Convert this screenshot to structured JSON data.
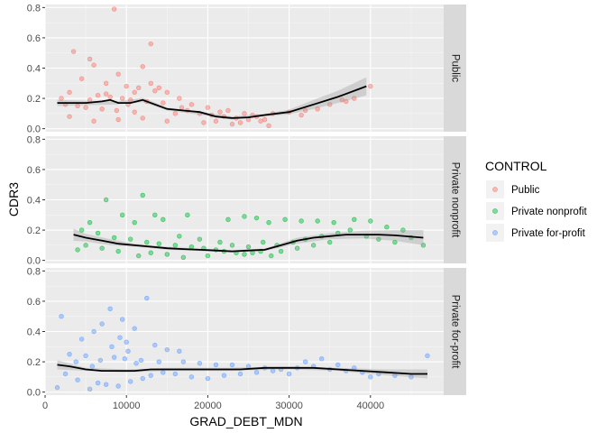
{
  "chart_data": {
    "type": "scatter",
    "xlabel": "GRAD_DEBT_MDN",
    "ylabel": "CDR3",
    "xlim": [
      0,
      49000
    ],
    "ylim": [
      -0.02,
      0.82
    ],
    "x_ticks": [
      0,
      10000,
      20000,
      30000,
      40000
    ],
    "x_tick_labels": [
      "0",
      "10000",
      "20000",
      "30000",
      "40000"
    ],
    "y_ticks": [
      0.0,
      0.2,
      0.4,
      0.6,
      0.8
    ],
    "y_tick_labels": [
      "0.0",
      "0.2",
      "0.4",
      "0.6",
      "0.8"
    ],
    "grid": true,
    "legend": {
      "title": "CONTROL",
      "placement": "right",
      "entries": [
        "Public",
        "Private nonprofit",
        "Private for-profit"
      ]
    },
    "panels": [
      {
        "name": "Public",
        "color": "#F8766D",
        "smooth": [
          [
            1500,
            0.17
          ],
          [
            3000,
            0.17
          ],
          [
            5000,
            0.17
          ],
          [
            7000,
            0.18
          ],
          [
            8000,
            0.19
          ],
          [
            9000,
            0.17
          ],
          [
            10500,
            0.17
          ],
          [
            12000,
            0.19
          ],
          [
            13500,
            0.16
          ],
          [
            15000,
            0.13
          ],
          [
            17000,
            0.12
          ],
          [
            19000,
            0.11
          ],
          [
            21000,
            0.08
          ],
          [
            23000,
            0.07
          ],
          [
            25000,
            0.075
          ],
          [
            27000,
            0.09
          ],
          [
            30000,
            0.11
          ],
          [
            33000,
            0.16
          ],
          [
            36000,
            0.21
          ],
          [
            39500,
            0.28
          ]
        ],
        "band": [
          [
            1500,
            0.15,
            0.19
          ],
          [
            5000,
            0.155,
            0.185
          ],
          [
            9000,
            0.16,
            0.18
          ],
          [
            12000,
            0.175,
            0.205
          ],
          [
            15000,
            0.12,
            0.14
          ],
          [
            20000,
            0.085,
            0.105
          ],
          [
            23000,
            0.06,
            0.08
          ],
          [
            27000,
            0.08,
            0.1
          ],
          [
            30000,
            0.095,
            0.125
          ],
          [
            33000,
            0.13,
            0.19
          ],
          [
            36000,
            0.17,
            0.25
          ],
          [
            39500,
            0.22,
            0.34
          ]
        ],
        "points": [
          [
            8500,
            0.79
          ],
          [
            13000,
            0.56
          ],
          [
            3500,
            0.51
          ],
          [
            5500,
            0.46
          ],
          [
            6000,
            0.42
          ],
          [
            12000,
            0.41
          ],
          [
            9000,
            0.36
          ],
          [
            4500,
            0.33
          ],
          [
            7500,
            0.3
          ],
          [
            10000,
            0.28
          ],
          [
            11500,
            0.27
          ],
          [
            13500,
            0.25
          ],
          [
            15000,
            0.24
          ],
          [
            3000,
            0.24
          ],
          [
            6500,
            0.22
          ],
          [
            8000,
            0.21
          ],
          [
            9500,
            0.2
          ],
          [
            10500,
            0.19
          ],
          [
            12500,
            0.18
          ],
          [
            14500,
            0.17
          ],
          [
            2500,
            0.16
          ],
          [
            4000,
            0.15
          ],
          [
            5000,
            0.14
          ],
          [
            7000,
            0.13
          ],
          [
            8800,
            0.12
          ],
          [
            11000,
            0.11
          ],
          [
            16000,
            0.1
          ],
          [
            17500,
            0.12
          ],
          [
            19000,
            0.1
          ],
          [
            20500,
            0.09
          ],
          [
            22000,
            0.08
          ],
          [
            23500,
            0.07
          ],
          [
            25000,
            0.06
          ],
          [
            26500,
            0.05
          ],
          [
            21000,
            0.05
          ],
          [
            24000,
            0.04
          ],
          [
            18000,
            0.16
          ],
          [
            16500,
            0.2
          ],
          [
            20000,
            0.14
          ],
          [
            22500,
            0.12
          ],
          [
            24500,
            0.1
          ],
          [
            26000,
            0.08
          ],
          [
            27000,
            0.06
          ],
          [
            28000,
            0.1
          ],
          [
            30000,
            0.11
          ],
          [
            31500,
            0.09
          ],
          [
            32000,
            0.12
          ],
          [
            33500,
            0.13
          ],
          [
            35000,
            0.16
          ],
          [
            36500,
            0.19
          ],
          [
            38000,
            0.2
          ],
          [
            37000,
            0.18
          ],
          [
            40000,
            0.28
          ],
          [
            3000,
            0.08
          ],
          [
            6000,
            0.05
          ],
          [
            9000,
            0.06
          ],
          [
            12000,
            0.07
          ],
          [
            15000,
            0.05
          ],
          [
            19500,
            0.04
          ],
          [
            23000,
            0.03
          ],
          [
            27500,
            0.02
          ],
          [
            13000,
            0.3
          ],
          [
            14000,
            0.27
          ],
          [
            11000,
            0.24
          ],
          [
            7500,
            0.23
          ],
          [
            5500,
            0.19
          ],
          [
            2000,
            0.2
          ],
          [
            10200,
            0.16
          ],
          [
            16800,
            0.14
          ],
          [
            21500,
            0.11
          ],
          [
            25500,
            0.09
          ]
        ]
      },
      {
        "name": "Private nonprofit",
        "color": "#00BA38",
        "smooth": [
          [
            3500,
            0.17
          ],
          [
            5000,
            0.15
          ],
          [
            7000,
            0.13
          ],
          [
            9000,
            0.11
          ],
          [
            11000,
            0.1
          ],
          [
            13000,
            0.09
          ],
          [
            15000,
            0.08
          ],
          [
            17000,
            0.075
          ],
          [
            19000,
            0.07
          ],
          [
            21000,
            0.065
          ],
          [
            23000,
            0.06
          ],
          [
            25000,
            0.065
          ],
          [
            27000,
            0.07
          ],
          [
            29000,
            0.1
          ],
          [
            31000,
            0.13
          ],
          [
            33000,
            0.15
          ],
          [
            35000,
            0.16
          ],
          [
            37000,
            0.17
          ],
          [
            39000,
            0.17
          ],
          [
            41000,
            0.17
          ],
          [
            43000,
            0.165
          ],
          [
            46500,
            0.15
          ]
        ],
        "band": [
          [
            3500,
            0.13,
            0.21
          ],
          [
            5000,
            0.125,
            0.175
          ],
          [
            8000,
            0.1,
            0.14
          ],
          [
            11000,
            0.09,
            0.11
          ],
          [
            15000,
            0.07,
            0.09
          ],
          [
            19000,
            0.062,
            0.078
          ],
          [
            23000,
            0.052,
            0.068
          ],
          [
            27000,
            0.062,
            0.078
          ],
          [
            31000,
            0.11,
            0.15
          ],
          [
            35000,
            0.14,
            0.18
          ],
          [
            39000,
            0.145,
            0.195
          ],
          [
            43000,
            0.13,
            0.2
          ],
          [
            46500,
            0.1,
            0.2
          ]
        ],
        "points": [
          [
            7500,
            0.4
          ],
          [
            12000,
            0.43
          ],
          [
            9500,
            0.3
          ],
          [
            13500,
            0.3
          ],
          [
            17500,
            0.3
          ],
          [
            14500,
            0.27
          ],
          [
            5500,
            0.25
          ],
          [
            11000,
            0.25
          ],
          [
            22500,
            0.27
          ],
          [
            24500,
            0.29
          ],
          [
            26000,
            0.28
          ],
          [
            27500,
            0.25
          ],
          [
            29500,
            0.27
          ],
          [
            31500,
            0.26
          ],
          [
            33500,
            0.26
          ],
          [
            35500,
            0.25
          ],
          [
            38000,
            0.27
          ],
          [
            40000,
            0.26
          ],
          [
            42000,
            0.22
          ],
          [
            44000,
            0.2
          ],
          [
            46500,
            0.1
          ],
          [
            4500,
            0.2
          ],
          [
            6500,
            0.18
          ],
          [
            8500,
            0.15
          ],
          [
            10500,
            0.14
          ],
          [
            12500,
            0.12
          ],
          [
            14000,
            0.11
          ],
          [
            16000,
            0.1
          ],
          [
            18000,
            0.09
          ],
          [
            19500,
            0.08
          ],
          [
            21000,
            0.07
          ],
          [
            22000,
            0.06
          ],
          [
            23500,
            0.05
          ],
          [
            24500,
            0.04
          ],
          [
            25500,
            0.05
          ],
          [
            26500,
            0.06
          ],
          [
            27800,
            0.03
          ],
          [
            20000,
            0.03
          ],
          [
            17000,
            0.02
          ],
          [
            15000,
            0.04
          ],
          [
            13000,
            0.05
          ],
          [
            11500,
            0.03
          ],
          [
            9000,
            0.06
          ],
          [
            7000,
            0.08
          ],
          [
            5000,
            0.1
          ],
          [
            4000,
            0.07
          ],
          [
            28500,
            0.1
          ],
          [
            30500,
            0.12
          ],
          [
            32000,
            0.14
          ],
          [
            34000,
            0.16
          ],
          [
            36000,
            0.18
          ],
          [
            37500,
            0.2
          ],
          [
            39500,
            0.16
          ],
          [
            41000,
            0.14
          ],
          [
            43000,
            0.12
          ],
          [
            45000,
            0.15
          ],
          [
            16500,
            0.16
          ],
          [
            19000,
            0.14
          ],
          [
            21500,
            0.12
          ],
          [
            23000,
            0.1
          ],
          [
            25000,
            0.09
          ],
          [
            26800,
            0.12
          ],
          [
            29000,
            0.06
          ],
          [
            31000,
            0.08
          ],
          [
            33000,
            0.1
          ],
          [
            35000,
            0.12
          ]
        ]
      },
      {
        "name": "Private for-profit",
        "color": "#619CFF",
        "smooth": [
          [
            1500,
            0.18
          ],
          [
            3000,
            0.17
          ],
          [
            5000,
            0.15
          ],
          [
            7000,
            0.14
          ],
          [
            9000,
            0.14
          ],
          [
            11000,
            0.14
          ],
          [
            13000,
            0.15
          ],
          [
            15000,
            0.15
          ],
          [
            18000,
            0.15
          ],
          [
            21000,
            0.15
          ],
          [
            24000,
            0.15
          ],
          [
            27000,
            0.16
          ],
          [
            30000,
            0.16
          ],
          [
            33000,
            0.16
          ],
          [
            36000,
            0.15
          ],
          [
            39000,
            0.14
          ],
          [
            42000,
            0.13
          ],
          [
            45000,
            0.12
          ],
          [
            47000,
            0.12
          ]
        ],
        "band": [
          [
            1500,
            0.15,
            0.21
          ],
          [
            5000,
            0.14,
            0.16
          ],
          [
            10000,
            0.13,
            0.15
          ],
          [
            15000,
            0.14,
            0.16
          ],
          [
            22000,
            0.14,
            0.16
          ],
          [
            30000,
            0.15,
            0.17
          ],
          [
            36000,
            0.14,
            0.16
          ],
          [
            42000,
            0.11,
            0.15
          ],
          [
            47000,
            0.09,
            0.15
          ]
        ],
        "points": [
          [
            2000,
            0.5
          ],
          [
            12500,
            0.62
          ],
          [
            8000,
            0.55
          ],
          [
            9500,
            0.48
          ],
          [
            7000,
            0.45
          ],
          [
            11000,
            0.42
          ],
          [
            6000,
            0.4
          ],
          [
            4500,
            0.35
          ],
          [
            10000,
            0.33
          ],
          [
            13500,
            0.31
          ],
          [
            15000,
            0.28
          ],
          [
            16500,
            0.27
          ],
          [
            3000,
            0.25
          ],
          [
            5000,
            0.24
          ],
          [
            8500,
            0.23
          ],
          [
            9800,
            0.22
          ],
          [
            11800,
            0.21
          ],
          [
            14000,
            0.2
          ],
          [
            17000,
            0.2
          ],
          [
            19000,
            0.19
          ],
          [
            21000,
            0.18
          ],
          [
            23000,
            0.18
          ],
          [
            25000,
            0.17
          ],
          [
            27000,
            0.16
          ],
          [
            29000,
            0.15
          ],
          [
            31000,
            0.16
          ],
          [
            33000,
            0.17
          ],
          [
            35000,
            0.15
          ],
          [
            37000,
            0.14
          ],
          [
            39000,
            0.13
          ],
          [
            41000,
            0.12
          ],
          [
            43000,
            0.11
          ],
          [
            45000,
            0.1
          ],
          [
            47000,
            0.24
          ],
          [
            2500,
            0.12
          ],
          [
            4000,
            0.08
          ],
          [
            6500,
            0.06
          ],
          [
            7500,
            0.05
          ],
          [
            9000,
            0.04
          ],
          [
            10500,
            0.07
          ],
          [
            12000,
            0.09
          ],
          [
            13000,
            0.11
          ],
          [
            14500,
            0.13
          ],
          [
            16000,
            0.12
          ],
          [
            18000,
            0.1
          ],
          [
            20000,
            0.09
          ],
          [
            22000,
            0.11
          ],
          [
            24000,
            0.12
          ],
          [
            26000,
            0.13
          ],
          [
            28000,
            0.14
          ],
          [
            30000,
            0.12
          ],
          [
            32000,
            0.2
          ],
          [
            34000,
            0.22
          ],
          [
            36000,
            0.18
          ],
          [
            38000,
            0.16
          ],
          [
            40000,
            0.1
          ],
          [
            1500,
            0.03
          ],
          [
            5500,
            0.02
          ],
          [
            8200,
            0.3
          ],
          [
            9200,
            0.36
          ],
          [
            10200,
            0.27
          ],
          [
            11200,
            0.19
          ],
          [
            6800,
            0.21
          ],
          [
            5800,
            0.17
          ],
          [
            3800,
            0.2
          ]
        ]
      }
    ]
  }
}
